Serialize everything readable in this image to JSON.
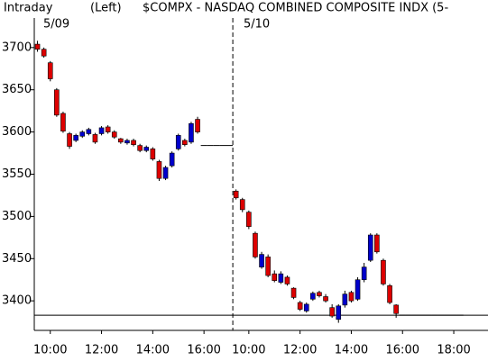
{
  "chart_data": {
    "type": "candlestick",
    "title": "$COMPX - NASDAQ COMBINED COMPOSITE INDX (5-",
    "period": "Intraday",
    "axis_side": "(Left)",
    "day_labels": [
      "5/09",
      "5/10"
    ],
    "categories": [
      null,
      null,
      "10:00",
      null,
      null,
      null,
      null,
      null,
      null,
      null,
      "12:00",
      null,
      null,
      null,
      null,
      null,
      null,
      null,
      "14:00",
      null,
      null,
      null,
      null,
      null,
      null,
      null,
      "16:00",
      null,
      null,
      null,
      null,
      null,
      null,
      "10:00",
      null,
      null,
      null,
      null,
      null,
      null,
      null,
      "12:00",
      null,
      null,
      null,
      null,
      null,
      null,
      null,
      "14:00",
      null,
      null,
      null,
      null,
      null,
      null,
      null,
      "16:00",
      null,
      null,
      null,
      null,
      null,
      null,
      null,
      "18:00",
      null,
      null,
      null,
      null,
      null
    ],
    "open": [
      3704,
      3698,
      3682,
      3650,
      3622,
      3598,
      3590,
      3595,
      3598,
      3597,
      3598,
      3606,
      3600,
      3592,
      3587,
      3590,
      3584,
      3578,
      3580,
      3565,
      3545,
      3560,
      3580,
      3590,
      3588,
      3615,
      3584,
      3584,
      3584,
      3584,
      3584,
      3530,
      3520,
      3505,
      3480,
      3440,
      3452,
      3432,
      3422,
      3428,
      3415,
      3398,
      3388,
      3402,
      3410,
      3405,
      3392,
      3378,
      3395,
      3410,
      3402,
      3425,
      3448,
      3478,
      3448,
      3418,
      3395,
      3383,
      3383,
      3383,
      3383,
      3383,
      3383,
      3383,
      3383,
      3383,
      3383,
      null,
      null,
      null,
      null
    ],
    "high": [
      3708,
      3700,
      3684,
      3652,
      3624,
      3600,
      3598,
      3602,
      3605,
      3599,
      3607,
      3608,
      3602,
      3593,
      3592,
      3592,
      3586,
      3584,
      3582,
      3567,
      3560,
      3577,
      3598,
      3592,
      3612,
      3618,
      3584,
      3584,
      3584,
      3584,
      3584,
      3532,
      3522,
      3507,
      3482,
      3458,
      3455,
      3436,
      3435,
      3430,
      3416,
      3400,
      3398,
      3411,
      3412,
      3408,
      3396,
      3396,
      3412,
      3412,
      3428,
      3445,
      3480,
      3480,
      3450,
      3420,
      3396,
      3383,
      3383,
      3383,
      3383,
      3383,
      3383,
      3383,
      3383,
      3383,
      3383,
      null,
      null,
      null,
      null
    ],
    "low": [
      3695,
      3688,
      3660,
      3618,
      3599,
      3580,
      3588,
      3593,
      3596,
      3586,
      3596,
      3598,
      3592,
      3586,
      3585,
      3583,
      3576,
      3576,
      3566,
      3542,
      3543,
      3558,
      3578,
      3583,
      3586,
      3598,
      3584,
      3584,
      3584,
      3584,
      3584,
      3520,
      3505,
      3485,
      3450,
      3438,
      3428,
      3422,
      3420,
      3418,
      3402,
      3388,
      3386,
      3400,
      3404,
      3398,
      3380,
      3374,
      3392,
      3398,
      3400,
      3422,
      3446,
      3456,
      3418,
      3396,
      3380,
      3383,
      3383,
      3383,
      3383,
      3383,
      3383,
      3383,
      3383,
      3383,
      3383,
      null,
      null,
      null,
      null
    ],
    "close": [
      3698,
      3690,
      3663,
      3620,
      3601,
      3583,
      3596,
      3600,
      3603,
      3588,
      3605,
      3600,
      3594,
      3588,
      3590,
      3585,
      3578,
      3582,
      3568,
      3545,
      3558,
      3575,
      3596,
      3585,
      3610,
      3600,
      3584,
      3584,
      3584,
      3584,
      3584,
      3522,
      3508,
      3488,
      3452,
      3455,
      3430,
      3424,
      3432,
      3420,
      3404,
      3390,
      3396,
      3409,
      3406,
      3400,
      3382,
      3394,
      3408,
      3400,
      3425,
      3440,
      3478,
      3458,
      3420,
      3398,
      3385,
      3383,
      3383,
      3383,
      3383,
      3383,
      3383,
      3383,
      3383,
      3383,
      3383,
      null,
      null,
      null,
      null
    ],
    "up_color": "#0000cc",
    "down_color": "#dd0000",
    "reference_line": 3383,
    "ylim": [
      3365,
      3735
    ],
    "yticks": [
      3400,
      3450,
      3500,
      3550,
      3600,
      3650,
      3700
    ]
  }
}
